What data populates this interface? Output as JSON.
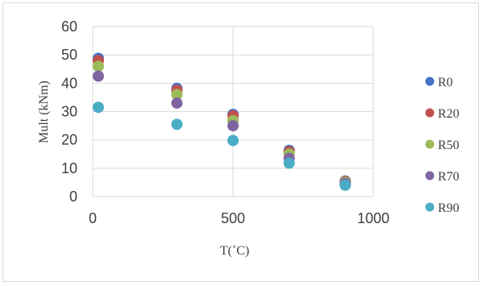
{
  "chart_data": {
    "type": "scatter",
    "title": "",
    "xlabel": "T(˚C)",
    "ylabel": "Mult (kNm)",
    "xlim": [
      0,
      1000
    ],
    "ylim": [
      0,
      60
    ],
    "x_ticks": [
      "0",
      "500",
      "1000"
    ],
    "y_ticks": [
      "0",
      "10",
      "20",
      "30",
      "40",
      "50",
      "60"
    ],
    "grid": true,
    "legend_position": "right",
    "x": [
      20,
      300,
      500,
      700,
      900
    ],
    "series": [
      {
        "name": "R0",
        "color": "#4472c4",
        "values": [
          48.8,
          38.2,
          29.0,
          16.3,
          5.5
        ]
      },
      {
        "name": "R20",
        "color": "#c0504d",
        "values": [
          48.0,
          37.5,
          28.5,
          15.8,
          5.3
        ]
      },
      {
        "name": "R50",
        "color": "#9bbb59",
        "values": [
          46.0,
          36.0,
          26.8,
          15.0,
          5.0
        ]
      },
      {
        "name": "R70",
        "color": "#8064a2",
        "values": [
          42.5,
          33.0,
          25.0,
          13.5,
          4.6
        ]
      },
      {
        "name": "R90",
        "color": "#4bacc6",
        "values": [
          31.5,
          25.5,
          19.8,
          11.8,
          4.0
        ]
      }
    ]
  }
}
